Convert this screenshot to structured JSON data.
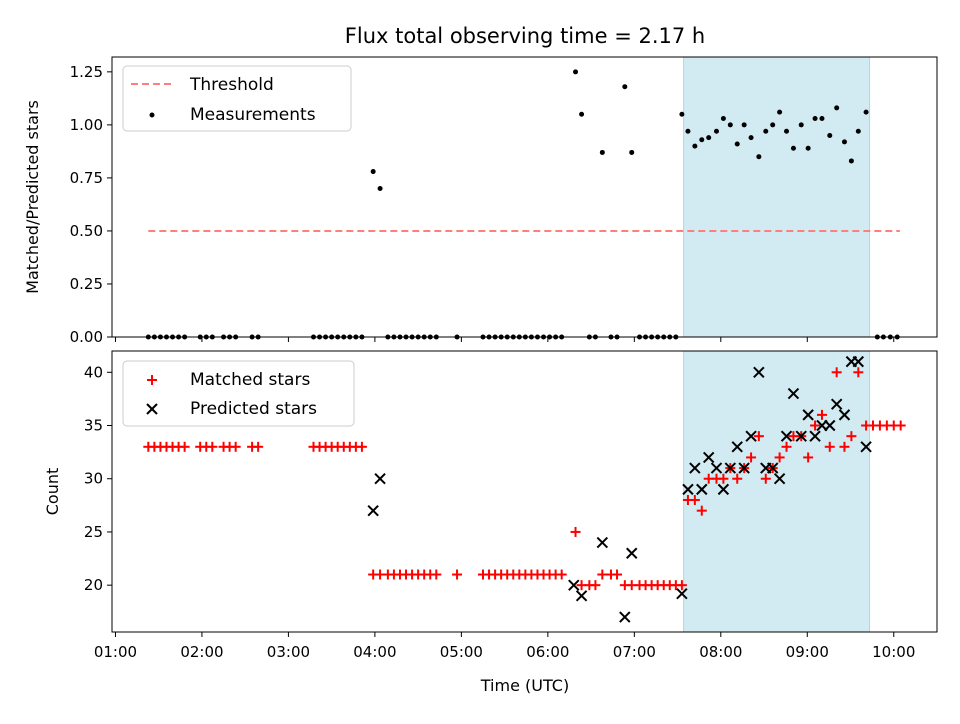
{
  "title": "Flux total observing time = 2.17 h",
  "x_axis": {
    "label": "Time (UTC)",
    "ticks": [
      {
        "t": 1,
        "label": "01:00"
      },
      {
        "t": 2,
        "label": "02:00"
      },
      {
        "t": 3,
        "label": "03:00"
      },
      {
        "t": 4,
        "label": "04:00"
      },
      {
        "t": 5,
        "label": "05:00"
      },
      {
        "t": 6,
        "label": "06:00"
      },
      {
        "t": 7,
        "label": "07:00"
      },
      {
        "t": 8,
        "label": "08:00"
      },
      {
        "t": 9,
        "label": "09:00"
      },
      {
        "t": 10,
        "label": "10:00"
      }
    ],
    "range": [
      0.96,
      10.5
    ]
  },
  "colors": {
    "threshold": "#ff7f7f",
    "measurement": "#000000",
    "matched": "#ff0000",
    "predicted": "#000000",
    "shaded_region": "#add8e6"
  },
  "chart_data": [
    {
      "type": "scatter",
      "title": "Flux total observing time = 2.17 h",
      "ylabel": "Matched/Predicted stars",
      "xlim": [
        0.96,
        10.5
      ],
      "ylim": [
        0,
        1.32
      ],
      "yticks": [
        "0.00",
        "0.25",
        "0.50",
        "0.75",
        "1.00",
        "1.25"
      ],
      "legend": {
        "position": "top-left",
        "entries": [
          "Threshold",
          "Measurements"
        ]
      },
      "shaded_region": {
        "x": [
          7.57,
          9.72
        ]
      },
      "threshold": {
        "name": "Threshold",
        "y": 0.5,
        "x": [
          1.38,
          10.07
        ]
      },
      "measurements": {
        "name": "Measurements",
        "points": [
          [
            1.38,
            0
          ],
          [
            1.45,
            0
          ],
          [
            1.52,
            0
          ],
          [
            1.59,
            0
          ],
          [
            1.66,
            0
          ],
          [
            1.73,
            0
          ],
          [
            1.8,
            0
          ],
          [
            1.98,
            0
          ],
          [
            2.05,
            0
          ],
          [
            2.12,
            0
          ],
          [
            2.25,
            0
          ],
          [
            2.32,
            0
          ],
          [
            2.39,
            0
          ],
          [
            2.58,
            0
          ],
          [
            2.65,
            0
          ],
          [
            3.29,
            0
          ],
          [
            3.36,
            0
          ],
          [
            3.43,
            0
          ],
          [
            3.5,
            0
          ],
          [
            3.57,
            0
          ],
          [
            3.64,
            0
          ],
          [
            3.71,
            0
          ],
          [
            3.78,
            0
          ],
          [
            3.85,
            0
          ],
          [
            3.98,
            0.78
          ],
          [
            4.06,
            0.7
          ],
          [
            4.15,
            0
          ],
          [
            4.22,
            0
          ],
          [
            4.29,
            0
          ],
          [
            4.36,
            0
          ],
          [
            4.43,
            0
          ],
          [
            4.5,
            0
          ],
          [
            4.57,
            0
          ],
          [
            4.64,
            0
          ],
          [
            4.71,
            0
          ],
          [
            4.95,
            0
          ],
          [
            5.25,
            0
          ],
          [
            5.32,
            0
          ],
          [
            5.39,
            0
          ],
          [
            5.46,
            0
          ],
          [
            5.53,
            0
          ],
          [
            5.6,
            0
          ],
          [
            5.67,
            0
          ],
          [
            5.74,
            0
          ],
          [
            5.81,
            0
          ],
          [
            5.88,
            0
          ],
          [
            5.95,
            0
          ],
          [
            6.02,
            0
          ],
          [
            6.09,
            0
          ],
          [
            6.16,
            0
          ],
          [
            6.32,
            1.25
          ],
          [
            6.39,
            1.05
          ],
          [
            6.48,
            0
          ],
          [
            6.55,
            0
          ],
          [
            6.63,
            0.87
          ],
          [
            6.73,
            0
          ],
          [
            6.8,
            0
          ],
          [
            6.89,
            1.18
          ],
          [
            6.97,
            0.87
          ],
          [
            7.06,
            0
          ],
          [
            7.13,
            0
          ],
          [
            7.2,
            0
          ],
          [
            7.27,
            0
          ],
          [
            7.34,
            0
          ],
          [
            7.41,
            0
          ],
          [
            7.48,
            0
          ],
          [
            7.55,
            1.05
          ],
          [
            7.62,
            0.97
          ],
          [
            7.7,
            0.9
          ],
          [
            7.78,
            0.93
          ],
          [
            7.86,
            0.94
          ],
          [
            7.95,
            0.97
          ],
          [
            8.03,
            1.03
          ],
          [
            8.11,
            1.0
          ],
          [
            8.19,
            0.91
          ],
          [
            8.27,
            1.0
          ],
          [
            8.35,
            0.94
          ],
          [
            8.44,
            0.85
          ],
          [
            8.52,
            0.97
          ],
          [
            8.6,
            1.0
          ],
          [
            8.68,
            1.06
          ],
          [
            8.76,
            0.97
          ],
          [
            8.84,
            0.89
          ],
          [
            8.93,
            1.0
          ],
          [
            9.01,
            0.89
          ],
          [
            9.09,
            1.03
          ],
          [
            9.17,
            1.03
          ],
          [
            9.26,
            0.95
          ],
          [
            9.34,
            1.08
          ],
          [
            9.43,
            0.92
          ],
          [
            9.51,
            0.83
          ],
          [
            9.59,
            0.97
          ],
          [
            9.68,
            1.06
          ],
          [
            9.81,
            0
          ],
          [
            9.88,
            0
          ],
          [
            9.96,
            0
          ],
          [
            10.04,
            0
          ]
        ]
      }
    },
    {
      "type": "scatter",
      "xlabel": "Time (UTC)",
      "ylabel": "Count",
      "xlim": [
        0.96,
        10.5
      ],
      "ylim": [
        15.6,
        42
      ],
      "yticks": [
        "20",
        "25",
        "30",
        "35",
        "40"
      ],
      "legend": {
        "position": "top-left",
        "entries": [
          "Matched stars",
          "Predicted stars"
        ]
      },
      "shaded_region": {
        "x": [
          7.57,
          9.72
        ]
      },
      "series": [
        {
          "name": "Matched stars",
          "marker": "+",
          "points": [
            [
              1.38,
              33
            ],
            [
              1.45,
              33
            ],
            [
              1.52,
              33
            ],
            [
              1.59,
              33
            ],
            [
              1.66,
              33
            ],
            [
              1.73,
              33
            ],
            [
              1.8,
              33
            ],
            [
              1.98,
              33
            ],
            [
              2.05,
              33
            ],
            [
              2.12,
              33
            ],
            [
              2.25,
              33
            ],
            [
              2.32,
              33
            ],
            [
              2.39,
              33
            ],
            [
              2.58,
              33
            ],
            [
              2.65,
              33
            ],
            [
              3.29,
              33
            ],
            [
              3.36,
              33
            ],
            [
              3.43,
              33
            ],
            [
              3.5,
              33
            ],
            [
              3.57,
              33
            ],
            [
              3.64,
              33
            ],
            [
              3.71,
              33
            ],
            [
              3.78,
              33
            ],
            [
              3.85,
              33
            ],
            [
              3.98,
              21
            ],
            [
              4.06,
              21
            ],
            [
              4.15,
              21
            ],
            [
              4.22,
              21
            ],
            [
              4.29,
              21
            ],
            [
              4.36,
              21
            ],
            [
              4.43,
              21
            ],
            [
              4.5,
              21
            ],
            [
              4.57,
              21
            ],
            [
              4.64,
              21
            ],
            [
              4.71,
              21
            ],
            [
              4.95,
              21
            ],
            [
              5.25,
              21
            ],
            [
              5.32,
              21
            ],
            [
              5.39,
              21
            ],
            [
              5.46,
              21
            ],
            [
              5.53,
              21
            ],
            [
              5.6,
              21
            ],
            [
              5.67,
              21
            ],
            [
              5.74,
              21
            ],
            [
              5.81,
              21
            ],
            [
              5.88,
              21
            ],
            [
              5.95,
              21
            ],
            [
              6.02,
              21
            ],
            [
              6.09,
              21
            ],
            [
              6.16,
              21
            ],
            [
              6.32,
              25
            ],
            [
              6.39,
              20
            ],
            [
              6.48,
              20
            ],
            [
              6.55,
              20
            ],
            [
              6.63,
              21
            ],
            [
              6.73,
              21
            ],
            [
              6.8,
              21
            ],
            [
              6.89,
              20
            ],
            [
              6.97,
              20
            ],
            [
              7.06,
              20
            ],
            [
              7.13,
              20
            ],
            [
              7.2,
              20
            ],
            [
              7.27,
              20
            ],
            [
              7.34,
              20
            ],
            [
              7.41,
              20
            ],
            [
              7.48,
              20
            ],
            [
              7.55,
              20
            ],
            [
              7.62,
              28
            ],
            [
              7.7,
              28
            ],
            [
              7.78,
              27
            ],
            [
              7.86,
              30
            ],
            [
              7.95,
              30
            ],
            [
              8.03,
              30
            ],
            [
              8.11,
              31
            ],
            [
              8.19,
              30
            ],
            [
              8.27,
              31
            ],
            [
              8.35,
              32
            ],
            [
              8.44,
              34
            ],
            [
              8.52,
              30
            ],
            [
              8.6,
              31
            ],
            [
              8.68,
              32
            ],
            [
              8.76,
              33
            ],
            [
              8.84,
              34
            ],
            [
              8.93,
              34
            ],
            [
              9.01,
              32
            ],
            [
              9.09,
              35
            ],
            [
              9.17,
              36
            ],
            [
              9.26,
              33
            ],
            [
              9.34,
              40
            ],
            [
              9.43,
              33
            ],
            [
              9.51,
              34
            ],
            [
              9.59,
              40
            ],
            [
              9.68,
              35
            ],
            [
              9.76,
              35
            ],
            [
              9.84,
              35
            ],
            [
              9.92,
              35
            ],
            [
              10.0,
              35
            ],
            [
              10.08,
              35
            ]
          ]
        },
        {
          "name": "Predicted stars",
          "marker": "x",
          "points": [
            [
              3.98,
              27
            ],
            [
              4.06,
              30
            ],
            [
              6.3,
              20
            ],
            [
              6.39,
              19
            ],
            [
              6.63,
              24
            ],
            [
              6.89,
              17
            ],
            [
              6.97,
              23
            ],
            [
              7.55,
              19.2
            ],
            [
              7.62,
              29
            ],
            [
              7.7,
              31
            ],
            [
              7.78,
              29
            ],
            [
              7.86,
              32
            ],
            [
              7.95,
              31
            ],
            [
              8.03,
              29
            ],
            [
              8.11,
              31
            ],
            [
              8.19,
              33
            ],
            [
              8.27,
              31
            ],
            [
              8.35,
              34
            ],
            [
              8.44,
              40
            ],
            [
              8.52,
              31
            ],
            [
              8.6,
              31
            ],
            [
              8.68,
              30
            ],
            [
              8.76,
              34
            ],
            [
              8.84,
              38
            ],
            [
              8.93,
              34
            ],
            [
              9.01,
              36
            ],
            [
              9.09,
              34
            ],
            [
              9.17,
              35
            ],
            [
              9.26,
              35
            ],
            [
              9.34,
              37
            ],
            [
              9.43,
              36
            ],
            [
              9.51,
              41
            ],
            [
              9.59,
              41
            ],
            [
              9.68,
              33
            ]
          ]
        }
      ]
    }
  ]
}
